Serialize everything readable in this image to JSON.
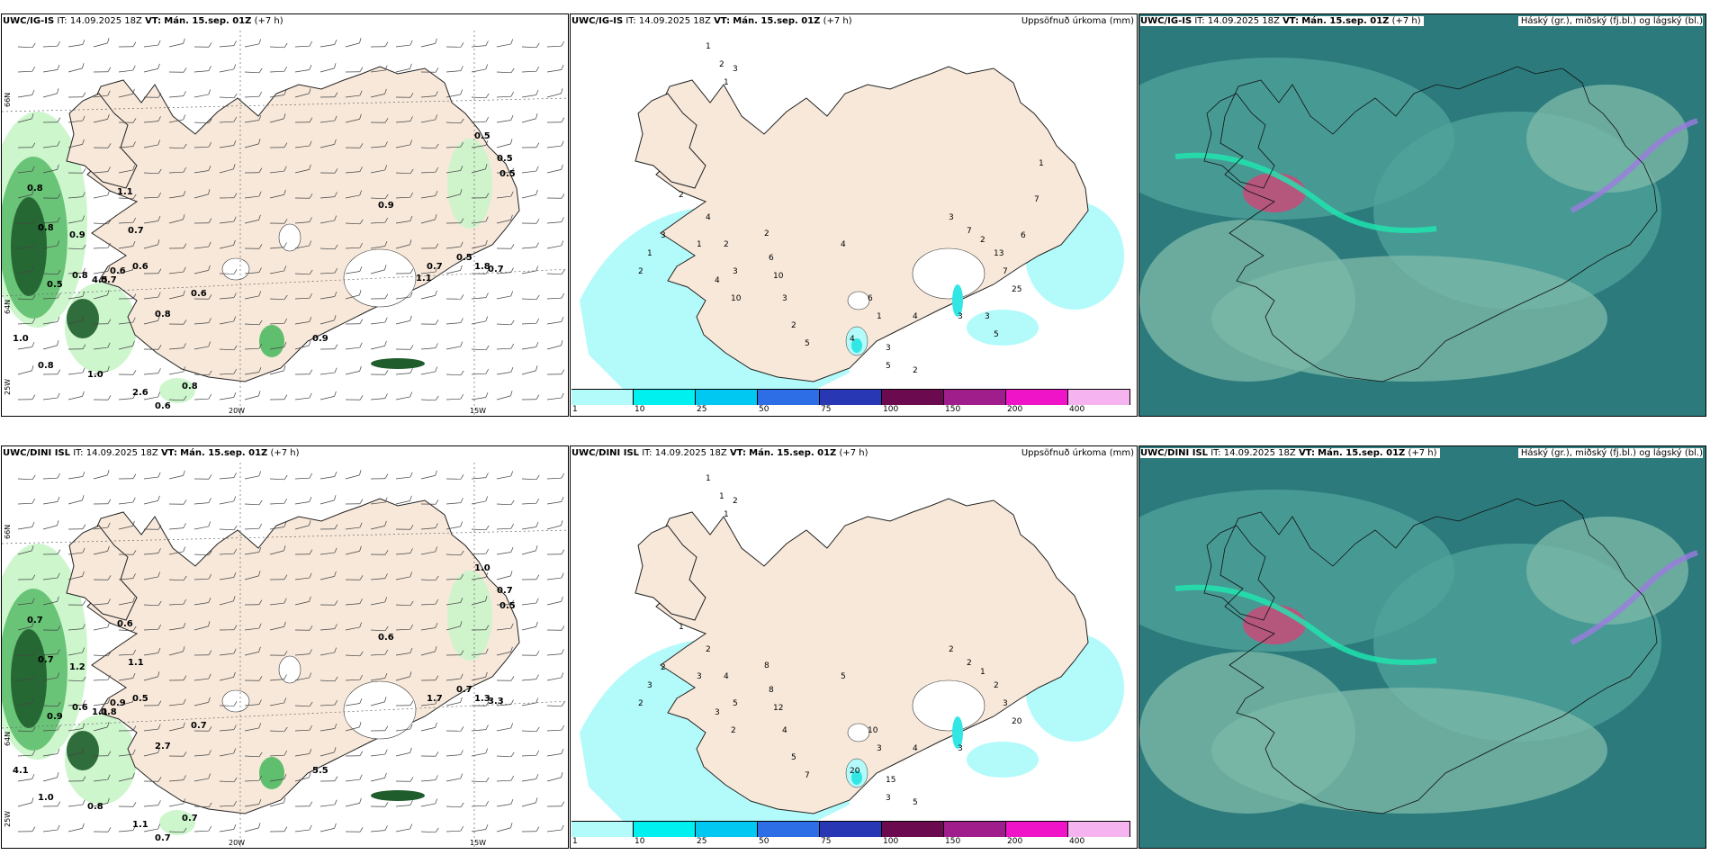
{
  "colors": {
    "land": "#f7e8da",
    "sea": "#ffffff",
    "precip_light": "#b3fafa",
    "precip_mid": "#33e6e6",
    "green_light": "#c8f5c8",
    "green_mid": "#5fbf6e",
    "green_dark": "#1f5e2c",
    "cloud_high": "#2c7a7c",
    "cloud_mid": "#4fa39a",
    "cloud_low": "#7ab8a6"
  },
  "panels": [
    {
      "model": "UWC/IG-IS",
      "it_label": "IT:",
      "it_value": "14.09.2025 18Z",
      "vt_label": "VT:",
      "vt_value": "Mán. 15.sep. 01Z",
      "lead": "(+7 h)",
      "right_title": "",
      "lat_labels": [
        "66N",
        "64N",
        "25W"
      ],
      "lon_labels": [
        "20W",
        "15W"
      ],
      "values": [
        "0.5",
        "0.5",
        "0.5",
        "0.8",
        "1.1",
        "0.9",
        "0.8",
        "0.9",
        "0.7",
        "0.6",
        "0.6",
        "0.5",
        "0.8",
        "0.7",
        "0.6",
        "0.8",
        "0.7",
        "1.0",
        "0.9",
        "0.8",
        "1.0",
        "2.6",
        "0.6",
        "0.8",
        "4.5",
        "1.8",
        "0.7",
        "0.5",
        "1.1"
      ]
    },
    {
      "model": "UWC/IG-IS",
      "it_label": "IT:",
      "it_value": "14.09.2025 18Z",
      "vt_label": "VT:",
      "vt_value": "Mán. 15.sep. 01Z",
      "lead": "(+7 h)",
      "right_title": "Uppsöfnuð úrkoma (mm)",
      "values": [
        "1",
        "2",
        "3",
        "1",
        "2",
        "3",
        "1",
        "2",
        "4",
        "1",
        "2",
        "3",
        "4",
        "10",
        "2",
        "6",
        "10",
        "3",
        "2",
        "5",
        "4",
        "6",
        "1",
        "3",
        "4",
        "5",
        "2",
        "3",
        "7",
        "2",
        "13",
        "7",
        "25",
        "3",
        "4",
        "5",
        "3",
        "6",
        "7",
        "1"
      ]
    },
    {
      "model": "UWC/IG-IS",
      "it_label": "IT:",
      "it_value": "14.09.2025 18Z",
      "vt_label": "VT:",
      "vt_value": "Mán. 15.sep. 01Z",
      "lead": "(+7 h)",
      "right_title": "Háský (gr.), miðský (fj.bl.) og lágský (bl.)"
    },
    {
      "model": "UWC/DINI ISL",
      "it_label": "IT:",
      "it_value": "14.09.2025 18Z",
      "vt_label": "VT:",
      "vt_value": "Mán. 15.sep. 01Z",
      "lead": "(+7 h)",
      "right_title": "",
      "lat_labels": [
        "66N",
        "64N",
        "25W"
      ],
      "lon_labels": [
        "20W",
        "15W"
      ],
      "values": [
        "1.0",
        "0.7",
        "0.5",
        "0.7",
        "0.6",
        "0.6",
        "0.7",
        "1.2",
        "1.1",
        "0.5",
        "0.9",
        "0.9",
        "0.6",
        "0.8",
        "0.7",
        "2.7",
        "1.7",
        "4.1",
        "5.5",
        "1.0",
        "0.8",
        "1.1",
        "0.7",
        "0.7",
        "1.1",
        "1.3",
        "3.3",
        "0.7"
      ]
    },
    {
      "model": "UWC/DINI ISL",
      "it_label": "IT:",
      "it_value": "14.09.2025 18Z",
      "vt_label": "VT:",
      "vt_value": "Mán. 15.sep. 01Z",
      "lead": "(+7 h)",
      "right_title": "Uppsöfnuð úrkoma (mm)",
      "values": [
        "1",
        "1",
        "2",
        "1",
        "1",
        "2",
        "3",
        "2",
        "2",
        "3",
        "4",
        "5",
        "3",
        "2",
        "8",
        "8",
        "12",
        "4",
        "5",
        "7",
        "5",
        "10",
        "3",
        "15",
        "20",
        "3",
        "5",
        "2",
        "2",
        "1",
        "2",
        "3",
        "20",
        "3",
        "4"
      ]
    },
    {
      "model": "UWC/DINI ISL",
      "it_label": "IT:",
      "it_value": "14.09.2025 18Z",
      "vt_label": "VT:",
      "vt_value": "Mán. 15.sep. 01Z",
      "lead": "(+7 h)",
      "right_title": "Háský (gr.), miðský (fj.bl.) og lágský (bl.)"
    }
  ],
  "colorbar": {
    "labels": [
      "1",
      "10",
      "25",
      "50",
      "75",
      "100",
      "150",
      "200",
      "400"
    ],
    "colors": [
      "#b3fafa",
      "#00f0f0",
      "#00c8f0",
      "#2d6ee6",
      "#2838b4",
      "#6b0a4f",
      "#a01e8c",
      "#f014c8",
      "#f5b4f0"
    ]
  }
}
